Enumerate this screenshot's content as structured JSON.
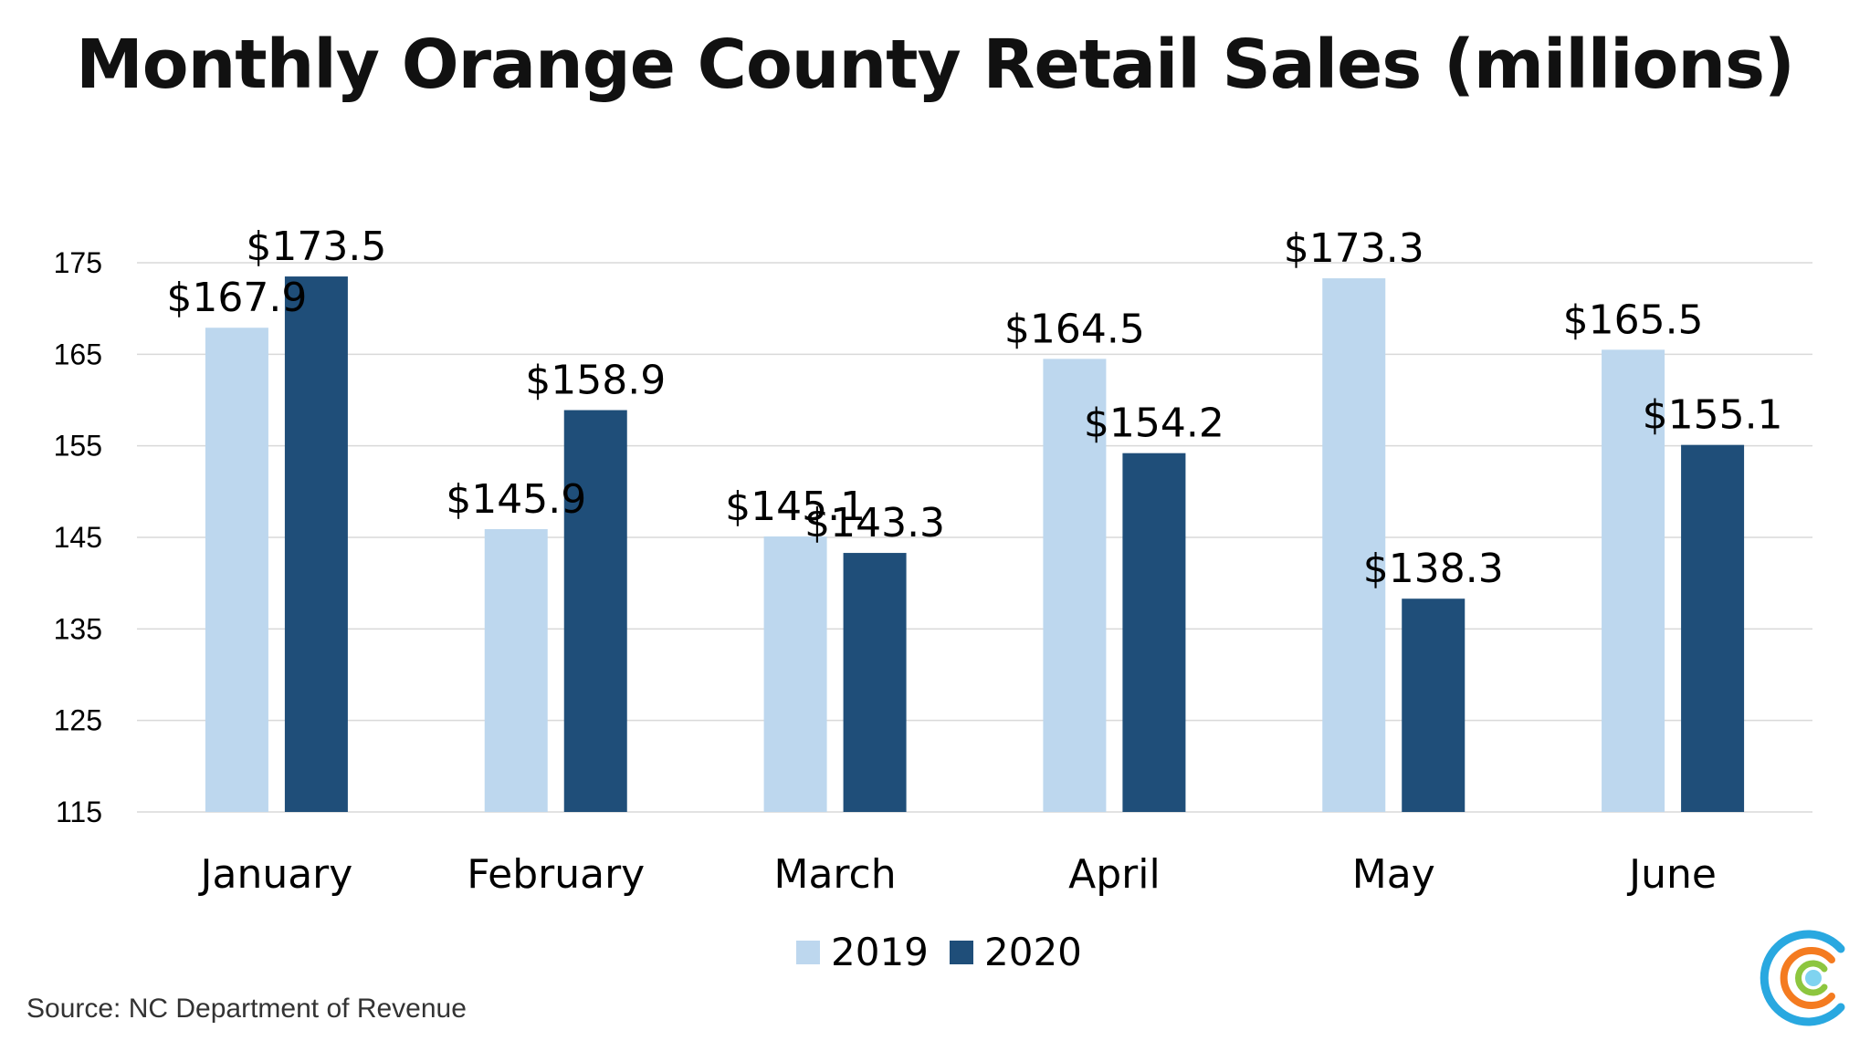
{
  "chart_data": {
    "type": "bar",
    "title": "Monthly Orange County Retail Sales (millions)",
    "categories": [
      "January",
      "February",
      "March",
      "April",
      "May",
      "June"
    ],
    "series": [
      {
        "name": "2019",
        "values": [
          167.9,
          145.9,
          145.1,
          164.5,
          173.3,
          165.5
        ],
        "color": "#bdd7ee"
      },
      {
        "name": "2020",
        "values": [
          173.5,
          158.9,
          143.3,
          154.2,
          138.3,
          155.1
        ],
        "color": "#1f4e79"
      }
    ],
    "data_labels": {
      "2019": [
        "$167.9",
        "$145.9",
        "$145.1",
        "$164.5",
        "$173.3",
        "$165.5"
      ],
      "2020": [
        "$173.5",
        "$158.9",
        "$143.3",
        "$154.2",
        "$138.3",
        "$155.1"
      ]
    },
    "yticks": [
      115,
      125,
      135,
      145,
      155,
      165,
      175
    ],
    "ylim": [
      115,
      175
    ],
    "xlabel": "",
    "ylabel": "",
    "grid": true,
    "legend": "bottom-center"
  },
  "source": "Source: NC Department of Revenue",
  "logo": {
    "name": "circular-c-logo",
    "colors": [
      "#29a8e0",
      "#f47b20",
      "#8dc63f",
      "#7fd3f0"
    ]
  }
}
